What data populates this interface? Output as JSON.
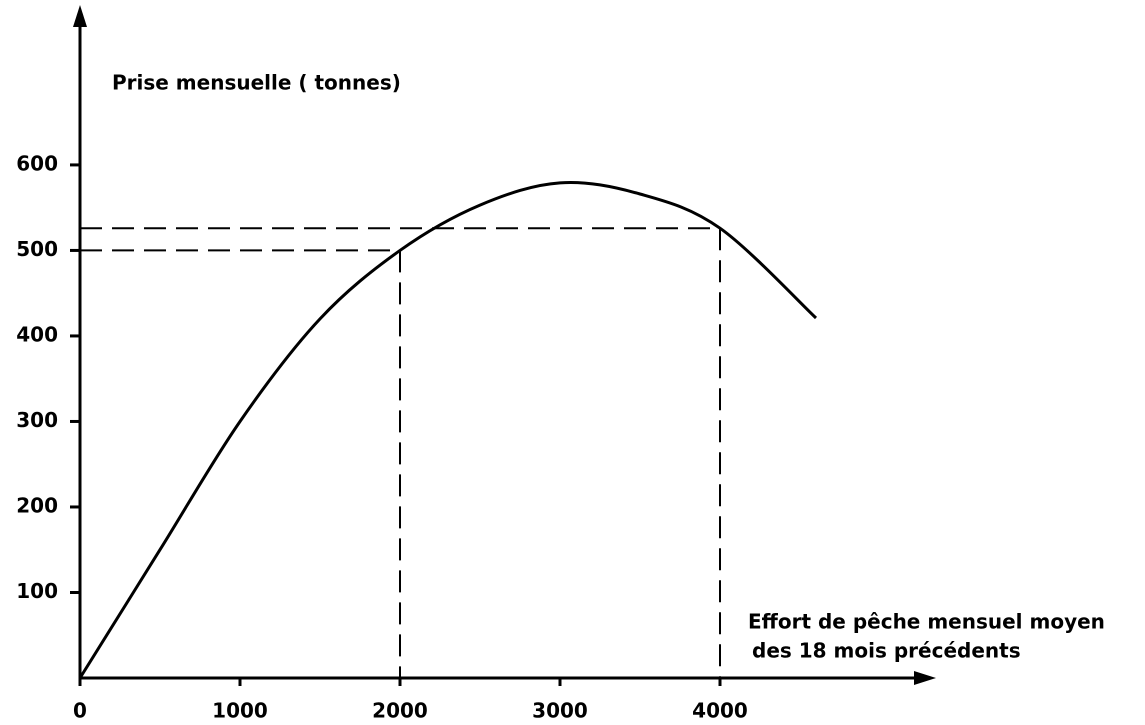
{
  "chart_data": {
    "type": "line",
    "y_label": "Prise mensuelle ( tonnes)",
    "x_label": [
      "Effort de pêche mensuel moyen",
      "des 18 mois précédents"
    ],
    "x": [
      0,
      500,
      1000,
      1500,
      2000,
      2500,
      3000,
      3500,
      4000,
      4600
    ],
    "series": [
      {
        "color": "#000000",
        "values": [
          0,
          150,
          300,
          420,
          500,
          553,
          579,
          566,
          526,
          421
        ]
      }
    ],
    "xlim": [
      0,
      5300
    ],
    "ylim": [
      0,
      780
    ],
    "xticks": [
      0,
      1000,
      2000,
      3000,
      4000
    ],
    "yticks": [
      100,
      200,
      300,
      400,
      500,
      600
    ],
    "reference_lines": [
      {
        "x": 2000,
        "y": 500
      },
      {
        "x": 4000,
        "y": 526
      }
    ]
  }
}
